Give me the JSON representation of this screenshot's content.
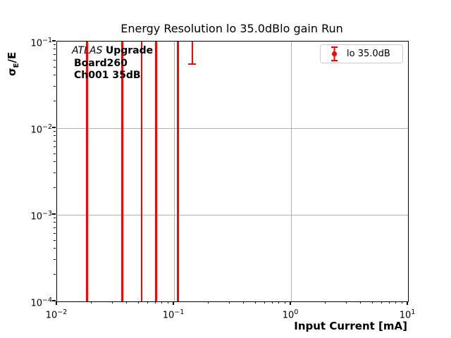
{
  "chart_data": {
    "type": "errorbar",
    "title": "Energy Resolution lo 35.0dBlo gain Run",
    "xlabel": "Input Current [mA]",
    "ylabel": "σE/E",
    "ylabel_parts": {
      "sigma": "σ",
      "sub": "E",
      "rest": "/E"
    },
    "x_scale": "log",
    "y_scale": "log",
    "xlim": [
      0.01,
      10
    ],
    "ylim": [
      0.0001,
      0.1
    ],
    "x_tick_exponents": [
      -2,
      -1,
      0,
      1
    ],
    "y_tick_exponents": [
      -1,
      -2,
      -3,
      -4
    ],
    "grid": "major gridlines on both axes",
    "legend": {
      "position": "upper right",
      "entries": [
        {
          "label": "lo 35.0dB",
          "color": "#ff0000",
          "marker": "circle with capped vertical errorbar"
        }
      ]
    },
    "series": [
      {
        "name": "lo 35.0dB",
        "color": "#ff0000",
        "x": [
          0.018,
          0.036,
          0.053,
          0.07,
          0.108,
          0.143
        ],
        "error_bars_drawn": [
          {
            "x": 0.018,
            "y_top": 0.1,
            "y_bottom": 0.0001,
            "cap_top": false,
            "cap_bottom": false
          },
          {
            "x": 0.036,
            "y_top": 0.1,
            "y_bottom": 0.0001,
            "cap_top": false,
            "cap_bottom": false
          },
          {
            "x": 0.053,
            "y_top": 0.1,
            "y_bottom": 0.0001,
            "cap_top": false,
            "cap_bottom": false
          },
          {
            "x": 0.07,
            "y_top": 0.1,
            "y_bottom": 0.0001,
            "cap_top": false,
            "cap_bottom": false
          },
          {
            "x": 0.108,
            "y_top": 0.1,
            "y_bottom": 0.0001,
            "cap_top": false,
            "cap_bottom": false
          },
          {
            "x": 0.143,
            "y_top": 0.1,
            "y_bottom": 0.055,
            "cap_top": false,
            "cap_bottom": true
          }
        ]
      }
    ]
  },
  "annotation": {
    "experiment": "ATLAS",
    "tag": "Upgrade",
    "board": "Board260",
    "channel": "Ch001 35dB"
  },
  "colors": {
    "series": "#ff0000",
    "grid": "#b0b0b0",
    "spine": "#000000",
    "legend_border": "#cccccc",
    "background": "#ffffff",
    "text": "#000000"
  }
}
